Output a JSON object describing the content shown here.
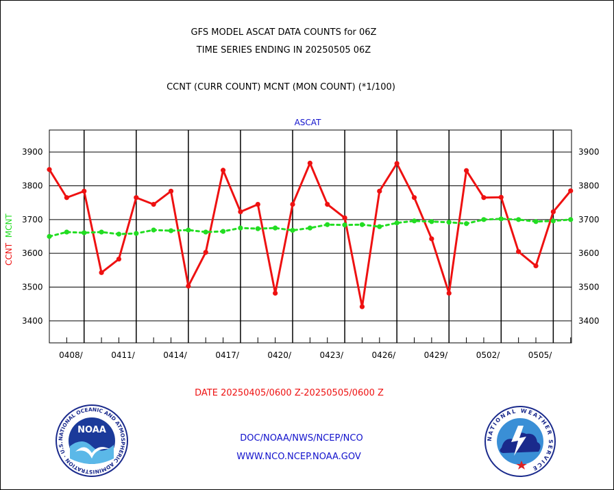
{
  "header": {
    "title_line1": "GFS MODEL ASCAT DATA COUNTS for 06Z",
    "title_line2": "TIME SERIES ENDING IN 20250505 06Z",
    "subtitle": "CCNT (CURR COUNT) MCNT (MON COUNT) (*1/100)"
  },
  "footer": {
    "date_range": "DATE 20250405/0600 Z-20250505/0600 Z",
    "org_path": "DOC/NOAA/NWS/NCEP/NCO",
    "website": "WWW.NCO.NCEP.NOAA.GOV"
  },
  "logos": {
    "noaa_text": "NOAA",
    "noaa_ring": "NATIONAL OCEANIC AND ATMOSPHERIC ADMINISTRATION · U.S. DEPARTMENT OF COMMERCE ·",
    "nws_ring": "NATIONAL WEATHER SERVICE"
  },
  "colors": {
    "ccnt": "#ee1111",
    "mcnt": "#22dd22",
    "plot_label": "#1111cc",
    "date_label": "#ee1111",
    "footer_text": "#1111cc"
  },
  "chart_data": {
    "type": "line",
    "title": "GFS MODEL ASCAT DATA COUNTS for 06Z",
    "subtitle": "TIME SERIES ENDING IN 20250505 06Z",
    "plot_label": "ASCAT",
    "ylabel_series": [
      "CCNT",
      "MCNT"
    ],
    "xlabel": "DATE 20250405/0600 Z-20250505/0600 Z",
    "x_ticks": [
      "0408/",
      "0411/",
      "0414/",
      "0417/",
      "0420/",
      "0423/",
      "0426/",
      "0429/",
      "0502/",
      "0505/"
    ],
    "y_ticks": [
      3400,
      3500,
      3600,
      3700,
      3800,
      3900
    ],
    "ylim": [
      3335,
      3965
    ],
    "xlim": [
      0,
      30.05
    ],
    "grid": true,
    "series": [
      {
        "name": "CCNT",
        "style": "solid",
        "values": [
          3848,
          3765,
          3784,
          3543,
          3583,
          3765,
          3745,
          3784,
          3503,
          3603,
          3846,
          3723,
          3745,
          3482,
          3745,
          3867,
          3745,
          3705,
          3442,
          3784,
          3866,
          3765,
          3643,
          3482,
          3845,
          3765,
          3766,
          3605,
          3563,
          3723,
          3785
        ]
      },
      {
        "name": "MCNT",
        "style": "dotted",
        "values": [
          3650,
          3663,
          3661,
          3663,
          3657,
          3659,
          3669,
          3667,
          3669,
          3663,
          3665,
          3675,
          3673,
          3675,
          3668,
          3675,
          3685,
          3684,
          3685,
          3679,
          3690,
          3696,
          3694,
          3692,
          3688,
          3700,
          3702,
          3700,
          3694,
          3696,
          3700
        ]
      }
    ]
  }
}
